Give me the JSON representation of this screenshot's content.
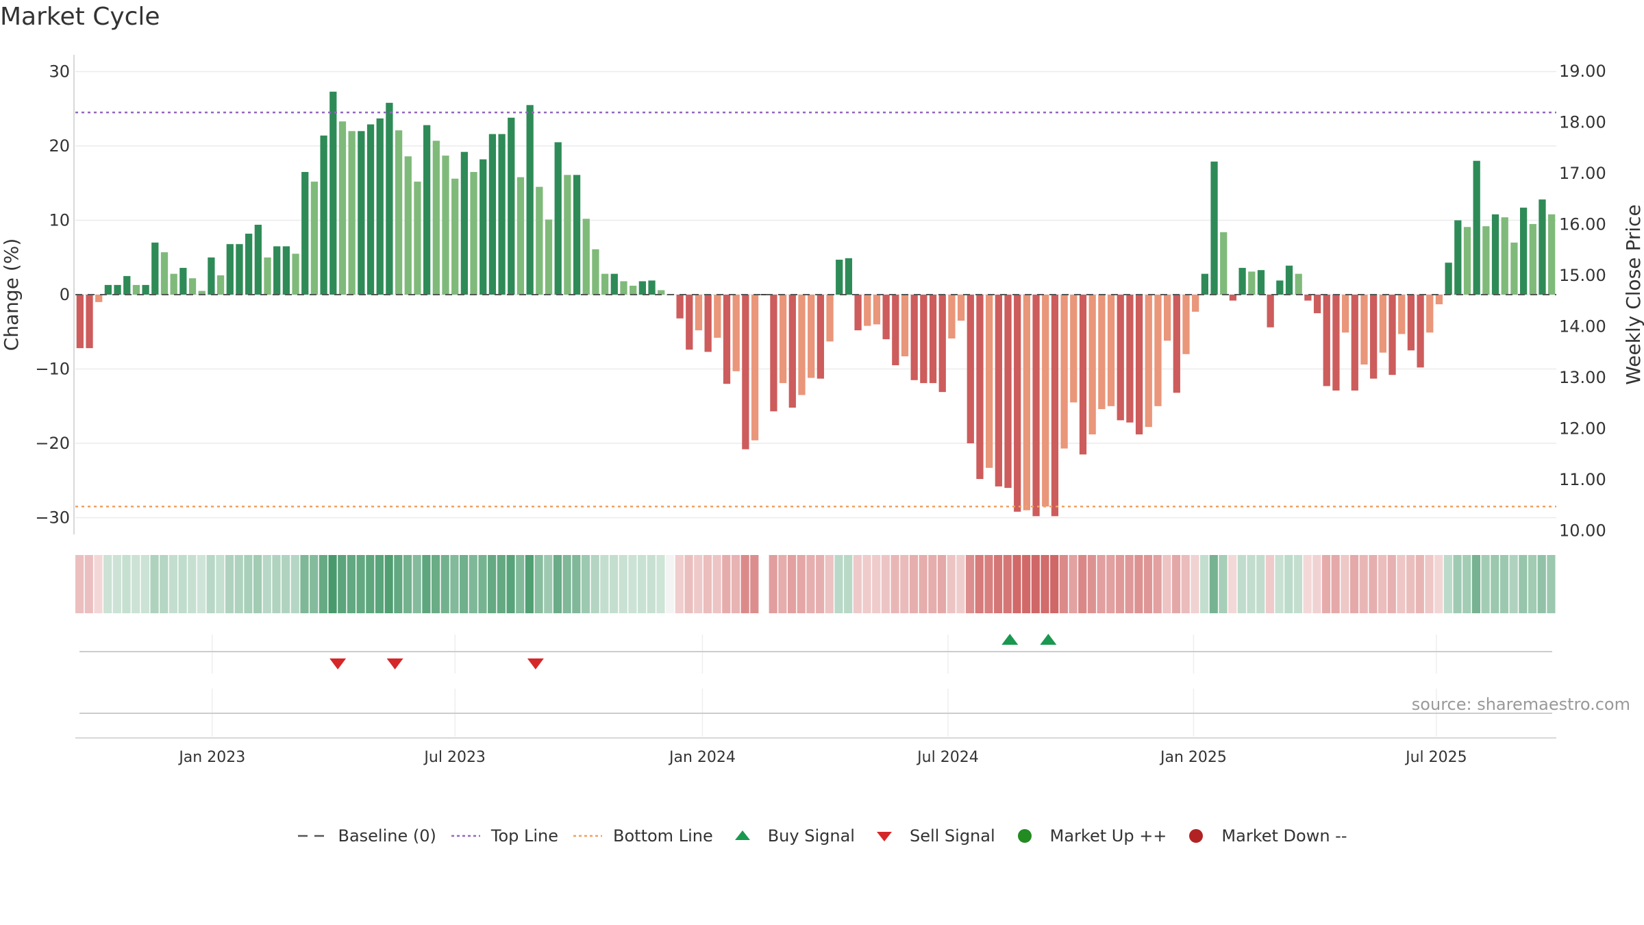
{
  "chart_data": {
    "type": "bar",
    "title": "Market Cycle",
    "ylabel": "Change (%)",
    "y2label": "Weekly Close Price",
    "ylim": [
      -32,
      32
    ],
    "y2lim": [
      9.85,
      19.24
    ],
    "yticks": [
      30,
      20,
      10,
      0,
      -10,
      -20,
      -30
    ],
    "ytick_labels": [
      "30",
      "20",
      "10",
      "0",
      "−10",
      "−20",
      "−30"
    ],
    "y2ticks": [
      19,
      18,
      17,
      16,
      15,
      14,
      13,
      12,
      11,
      10
    ],
    "y2tick_labels": [
      "19.00",
      "18.00",
      "17.00",
      "16.00",
      "15.00",
      "14.00",
      "13.00",
      "12.00",
      "11.00",
      "10.00"
    ],
    "x_axis": {
      "start_week": 0,
      "end_week": 157,
      "ticks": [
        {
          "label": "Jan 2023",
          "week": 14.1
        },
        {
          "label": "Jul 2023",
          "week": 40.0
        },
        {
          "label": "Jan 2024",
          "week": 66.4
        },
        {
          "label": "Jul 2024",
          "week": 92.6
        },
        {
          "label": "Jan 2025",
          "week": 118.8
        },
        {
          "label": "Jul 2025",
          "week": 144.7
        }
      ]
    },
    "top_line": 24.5,
    "bottom_line": -28.5,
    "values": [
      -7.2,
      -7.2,
      -1,
      1.3,
      1.3,
      2.5,
      1.3,
      1.3,
      7,
      5.7,
      2.8,
      3.6,
      2.2,
      0.5,
      5,
      2.6,
      6.8,
      6.8,
      8.2,
      9.4,
      5,
      6.5,
      6.5,
      5.5,
      16.5,
      15.2,
      21.4,
      27.3,
      23.3,
      22,
      22,
      22.9,
      23.7,
      25.8,
      22.1,
      18.6,
      15.2,
      22.8,
      20.7,
      18.7,
      15.6,
      19.2,
      16.5,
      18.2,
      21.6,
      21.6,
      23.8,
      15.8,
      25.5,
      14.5,
      10.1,
      20.5,
      16.1,
      16.1,
      10.2,
      6.1,
      2.8,
      2.8,
      1.8,
      1.2,
      1.8,
      1.9,
      0.6,
      0,
      -3.2,
      -7.4,
      -4.8,
      -7.7,
      -5.8,
      -12,
      -10.3,
      -20.8,
      -19.6,
      0,
      -15.7,
      -11.9,
      -15.2,
      -13.5,
      -11.2,
      -11.3,
      -6.3,
      4.7,
      4.9,
      -4.8,
      -4.2,
      -4,
      -6,
      -9.5,
      -8.3,
      -11.5,
      -11.9,
      -11.9,
      -13.1,
      -5.9,
      -3.5,
      -20,
      -24.8,
      -23.3,
      -25.8,
      -26,
      -29.2,
      -29,
      -29.8,
      -28.5,
      -29.8,
      -20.7,
      -14.5,
      -21.5,
      -18.8,
      -15.4,
      -15,
      -16.9,
      -17.2,
      -18.8,
      -17.8,
      -15,
      -6.2,
      -13.2,
      -8,
      -2.3,
      2.8,
      17.9,
      8.4,
      -0.8,
      3.6,
      3.1,
      3.3,
      -4.4,
      1.9,
      3.9,
      2.8,
      -0.8,
      -2.5,
      -12.3,
      -12.9,
      -5.1,
      -12.9,
      -9.4,
      -11.3,
      -7.8,
      -10.8,
      -5.3,
      -7.5,
      -9.8,
      -5.1,
      -1.3,
      4.3,
      10,
      9.1,
      18,
      9.2,
      10.8,
      10.4,
      7,
      11.7,
      9.5,
      12.8,
      10.8
    ],
    "strip_missing_weeks": [
      73
    ],
    "buy_signals": [
      {
        "week": 99.2
      },
      {
        "week": 103.3
      }
    ],
    "sell_signals": [
      {
        "week": 27.5
      },
      {
        "week": 33.6
      },
      {
        "week": 48.6
      }
    ],
    "colors": {
      "strong_up": "#2e8b57",
      "light_up": "#7fba7a",
      "strong_down": "#cd5c5c",
      "light_down": "#e9967a",
      "top_line": "#9467bd",
      "bottom_line": "#f0a060",
      "buy": "#1a9850",
      "sell": "#d62728",
      "market_up": "#228b22",
      "market_down": "#b22222",
      "baseline": "#555555"
    },
    "legend": [
      {
        "key": "baseline",
        "label": "Baseline (0)",
        "icon": "dash-line-icon"
      },
      {
        "key": "top",
        "label": "Top Line",
        "icon": "dotted-line-icon"
      },
      {
        "key": "bottom",
        "label": "Bottom Line",
        "icon": "dotted-line-icon"
      },
      {
        "key": "buy",
        "label": "Buy Signal",
        "icon": "triangle-up-icon"
      },
      {
        "key": "sell",
        "label": "Sell Signal",
        "icon": "triangle-down-icon"
      },
      {
        "key": "mup",
        "label": "Market Up ++",
        "icon": "circle-icon"
      },
      {
        "key": "mdown",
        "label": "Market Down --",
        "icon": "circle-icon"
      }
    ],
    "legend_placement": "bottom",
    "source": "source: sharemaestro.com"
  }
}
